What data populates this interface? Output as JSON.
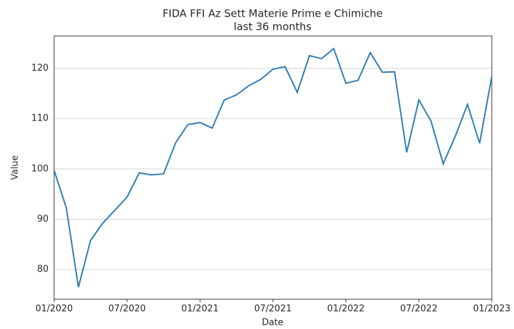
{
  "chart_data": {
    "type": "line",
    "title": "FIDA FFI Az Sett Materie Prime e Chimiche",
    "subtitle": "last 36 months",
    "x_label": "Date",
    "y_label": "Value",
    "x": [
      "01/2020",
      "02/2020",
      "03/2020",
      "04/2020",
      "05/2020",
      "06/2020",
      "07/2020",
      "08/2020",
      "09/2020",
      "10/2020",
      "11/2020",
      "12/2020",
      "01/2021",
      "02/2021",
      "03/2021",
      "04/2021",
      "05/2021",
      "06/2021",
      "07/2021",
      "08/2021",
      "09/2021",
      "10/2021",
      "11/2021",
      "12/2021",
      "01/2022",
      "02/2022",
      "03/2022",
      "04/2022",
      "05/2022",
      "06/2022",
      "07/2022",
      "08/2022",
      "09/2022",
      "10/2022",
      "11/2022",
      "12/2022",
      "01/2023"
    ],
    "series": [
      {
        "name": "Value",
        "color": "#2f7bb6",
        "values": [
          99.7,
          92.3,
          76.5,
          85.8,
          89.2,
          91.8,
          94.4,
          99.2,
          98.8,
          99.0,
          105.2,
          108.8,
          109.2,
          108.1,
          113.7,
          114.7,
          116.5,
          117.8,
          119.8,
          120.3,
          115.2,
          122.5,
          121.9,
          123.9,
          117.0,
          117.6,
          123.1,
          119.2,
          119.3,
          103.3,
          113.7,
          109.5,
          101.0,
          106.5,
          112.8,
          105.1,
          118.4
        ]
      }
    ],
    "xlim": [
      "01/2020",
      "01/2023"
    ],
    "xticks": [
      "01/2020",
      "07/2020",
      "01/2021",
      "07/2021",
      "01/2022",
      "07/2022",
      "01/2023"
    ],
    "ylim": [
      74.1,
      126.4
    ],
    "yticks": [
      80,
      90,
      100,
      110,
      120
    ],
    "grid": true
  }
}
